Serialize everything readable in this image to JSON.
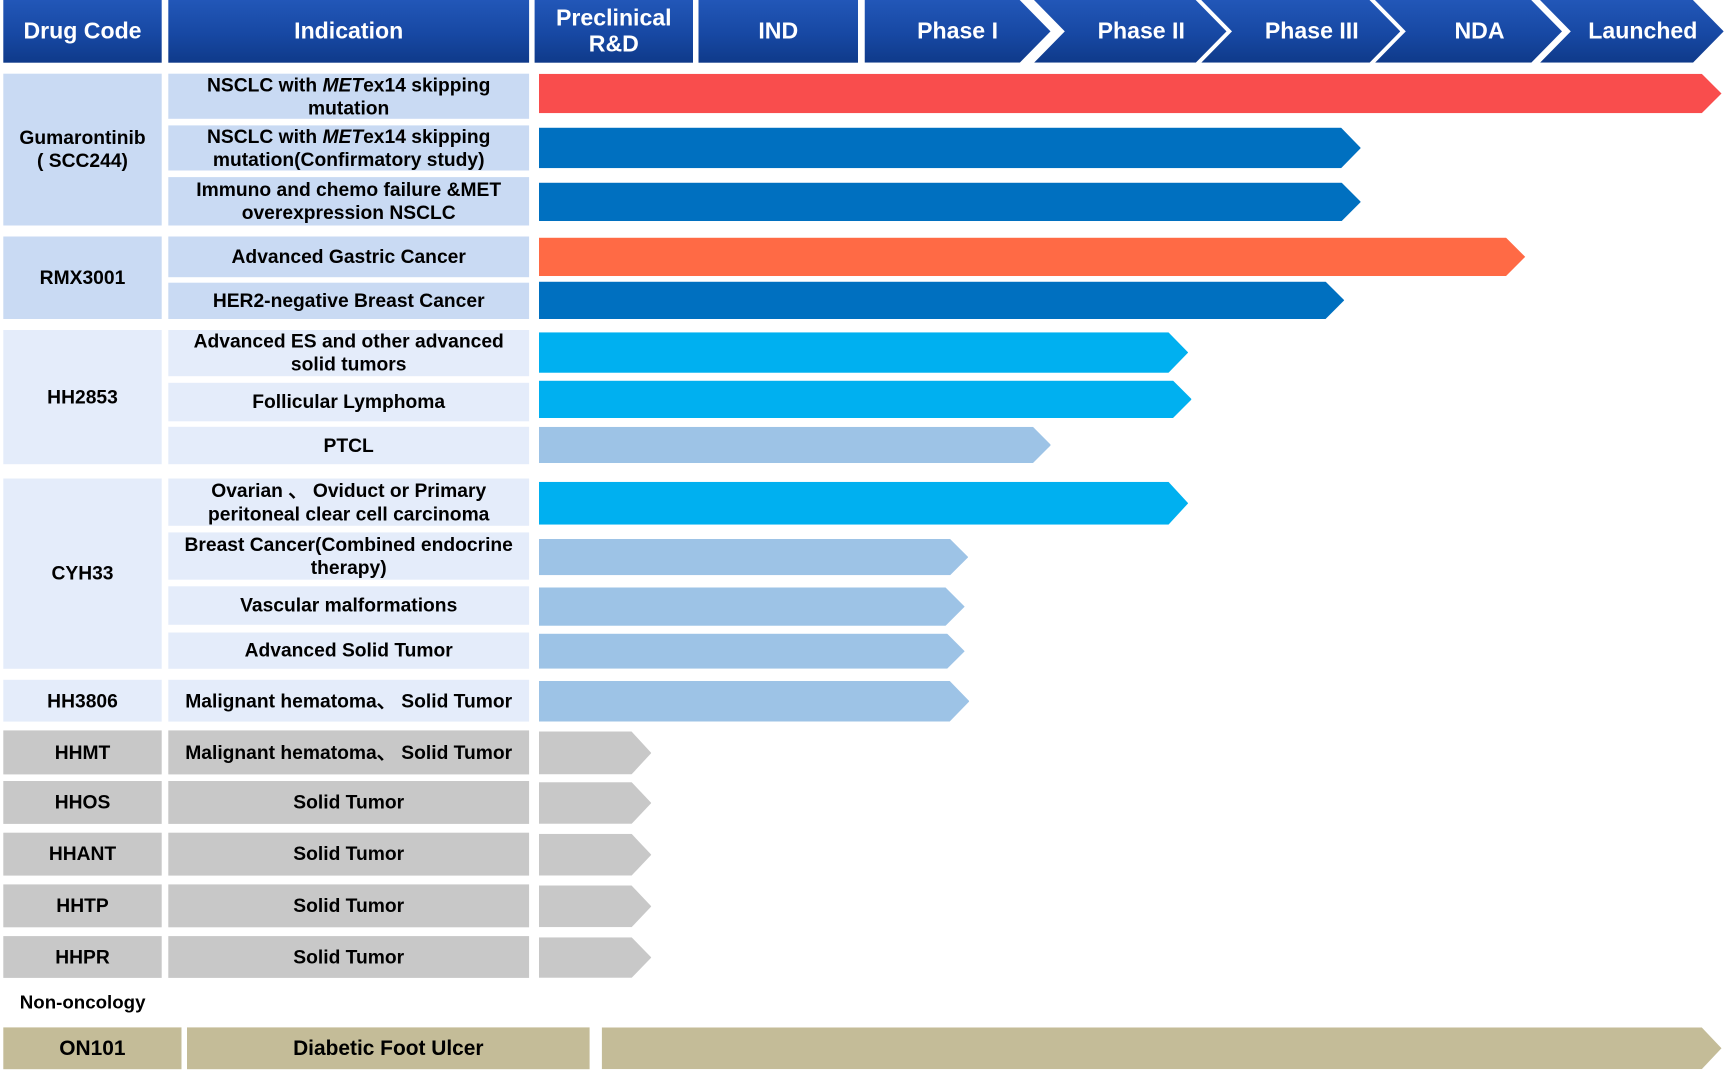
{
  "header": {
    "columns": [
      "Drug Code",
      "Indication"
    ],
    "stages": [
      "Preclinical R&D",
      "IND",
      "Phase I",
      "Phase II",
      "Phase III",
      "NDA",
      "Launched"
    ]
  },
  "colors": {
    "header": "#1a4fa8",
    "group_dark": "#c9daf3",
    "group_light": "#e4ecfa",
    "gray": "#c8c8c8",
    "tan": "#c4bc98",
    "red": "#f94d4d",
    "blue": "#0070c0",
    "orange": "#ff6a45",
    "cyan": "#00b0f0",
    "lightblue": "#9dc3e6"
  },
  "drugs": [
    {
      "code": "Gumarontinib\n( SCC244)",
      "tone": "group_dark",
      "indications": [
        {
          "pre": "NSCLC with ",
          "italic": "MET",
          "post": "ex14 skipping mutation",
          "color": "red",
          "progress": 1.0
        },
        {
          "pre": "NSCLC with ",
          "italic": "MET",
          "post": "ex14 skipping mutation(Confirmatory study)",
          "color": "blue",
          "progress": 0.695
        },
        {
          "pre": "Immuno and chemo failure &MET overexpression NSCLC",
          "color": "blue",
          "progress": 0.695
        }
      ]
    },
    {
      "code": "RMX3001",
      "tone": "group_dark",
      "indications": [
        {
          "pre": "Advanced Gastric Cancer",
          "color": "orange",
          "progress": 0.834
        },
        {
          "pre": "HER2-negative Breast Cancer",
          "color": "blue",
          "progress": 0.681
        }
      ]
    },
    {
      "code": "HH2853",
      "tone": "group_light",
      "indications": [
        {
          "pre": "Advanced ES and other advanced solid tumors",
          "color": "cyan",
          "progress": 0.549
        },
        {
          "pre": "Follicular Lymphoma",
          "color": "cyan",
          "progress": 0.552
        },
        {
          "pre": "PTCL",
          "color": "lightblue",
          "progress": 0.433
        }
      ]
    },
    {
      "code": "CYH33",
      "tone": "group_light",
      "indications": [
        {
          "pre": "Ovarian 、 Oviduct or Primary peritoneal clear cell carcinoma",
          "color": "cyan",
          "progress": 0.549
        },
        {
          "pre": "Breast Cancer(Combined endocrine therapy)",
          "color": "lightblue",
          "progress": 0.363
        },
        {
          "pre": "Vascular malformations",
          "color": "lightblue",
          "progress": 0.36
        },
        {
          "pre": "Advanced Solid Tumor",
          "color": "lightblue",
          "progress": 0.36
        }
      ]
    },
    {
      "code": "HH3806",
      "tone": "group_light",
      "indications": [
        {
          "pre": "Malignant hematoma、 Solid Tumor",
          "color": "lightblue",
          "progress": 0.364
        }
      ]
    },
    {
      "code": "HHMT",
      "tone": "gray",
      "indications": [
        {
          "pre": "Malignant hematoma、 Solid Tumor",
          "color": "gray",
          "progress": 0.095
        }
      ]
    },
    {
      "code": "HHOS",
      "tone": "gray",
      "indications": [
        {
          "pre": "Solid Tumor",
          "color": "gray",
          "progress": 0.095
        }
      ]
    },
    {
      "code": "HHANT",
      "tone": "gray",
      "indications": [
        {
          "pre": "Solid Tumor",
          "color": "gray",
          "progress": 0.095
        }
      ]
    },
    {
      "code": "HHTP",
      "tone": "gray",
      "indications": [
        {
          "pre": "Solid Tumor",
          "color": "gray",
          "progress": 0.095
        }
      ]
    },
    {
      "code": "HHPR",
      "tone": "gray",
      "indications": [
        {
          "pre": "Solid Tumor",
          "color": "gray",
          "progress": 0.095
        }
      ]
    }
  ],
  "non_oncology": {
    "label": "Non-oncology",
    "code": "ON101",
    "indication": "Diabetic Foot Ulcer",
    "color": "tan",
    "progress": 1.0
  }
}
